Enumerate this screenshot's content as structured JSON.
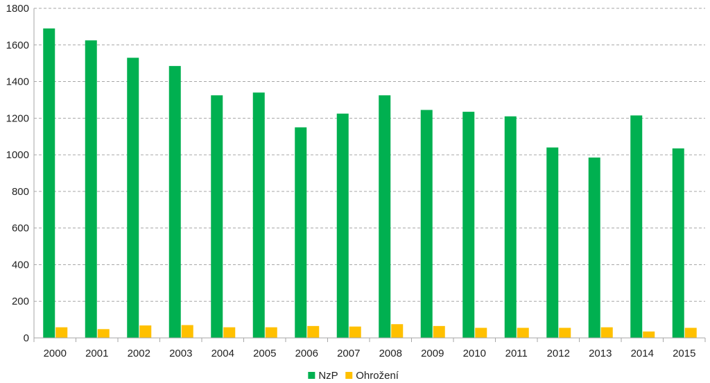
{
  "chart_data": {
    "type": "bar",
    "title": "",
    "xlabel": "",
    "ylabel": "",
    "categories": [
      "2000",
      "2001",
      "2002",
      "2003",
      "2004",
      "2005",
      "2006",
      "2007",
      "2008",
      "2009",
      "2010",
      "2011",
      "2012",
      "2013",
      "2014",
      "2015"
    ],
    "series": [
      {
        "name": "NzP",
        "color": "#00b050",
        "values": [
          1690,
          1625,
          1530,
          1485,
          1325,
          1340,
          1150,
          1225,
          1325,
          1245,
          1235,
          1210,
          1040,
          985,
          1215,
          1035
        ]
      },
      {
        "name": "Ohrožení",
        "color": "#ffc000",
        "values": [
          58,
          48,
          68,
          70,
          58,
          58,
          65,
          62,
          75,
          65,
          55,
          55,
          55,
          58,
          35,
          55
        ]
      }
    ],
    "ylim": [
      0,
      1800
    ],
    "yticks": [
      0,
      200,
      400,
      600,
      800,
      1000,
      1200,
      1400,
      1600,
      1800
    ],
    "grid": true,
    "legend_position": "bottom"
  }
}
